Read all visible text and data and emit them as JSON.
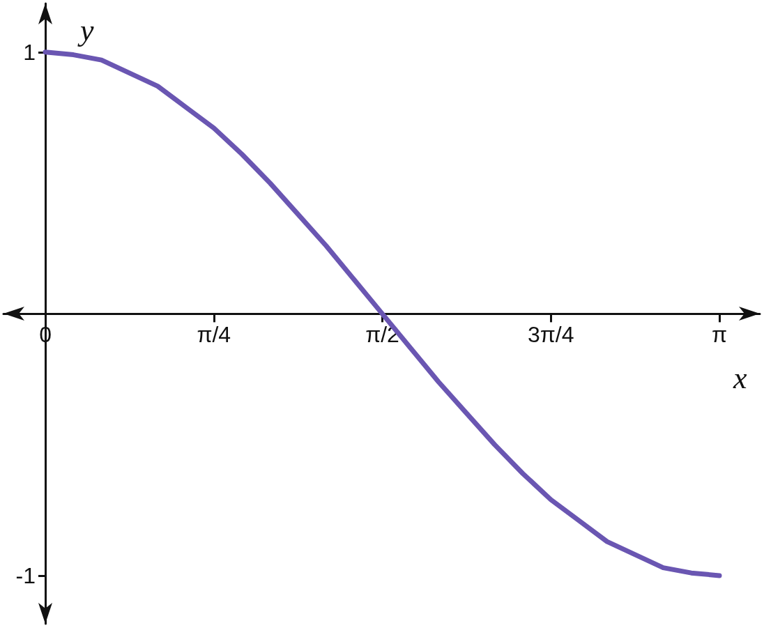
{
  "chart_data": {
    "type": "line",
    "xlabel": "x",
    "ylabel": "y",
    "x": [
      0,
      0.1309,
      0.2618,
      0.3927,
      0.5236,
      0.6545,
      0.7854,
      0.9163,
      1.0472,
      1.1781,
      1.309,
      1.4399,
      1.5708,
      1.7017,
      1.8326,
      1.9635,
      2.0944,
      2.2253,
      2.3562,
      2.4871,
      2.618,
      2.7489,
      2.8798,
      3.0107,
      3.1416
    ],
    "series": [
      {
        "color": "#6a56b2",
        "values": [
          1,
          0.99,
          0.97,
          0.92,
          0.87,
          0.79,
          0.71,
          0.61,
          0.5,
          0.38,
          0.26,
          0.13,
          0,
          -0.13,
          -0.26,
          -0.38,
          -0.5,
          -0.61,
          -0.71,
          -0.79,
          -0.87,
          -0.92,
          -0.97,
          -0.99,
          -1
        ]
      }
    ],
    "xlim": [
      -0.195,
      3.33
    ],
    "xticks": [
      0,
      {
        "value": 0.7854,
        "label": "π/4"
      },
      {
        "value": 1.5708,
        "label": "π/2"
      },
      {
        "value": 2.3562,
        "label": "3π/4"
      },
      {
        "value": 3.1416,
        "label": "π"
      }
    ],
    "ylim": [
      -1.184,
      1.186
    ],
    "yticks": [
      -1,
      1
    ],
    "grid": false,
    "marker": "none",
    "line_style": "solid"
  }
}
